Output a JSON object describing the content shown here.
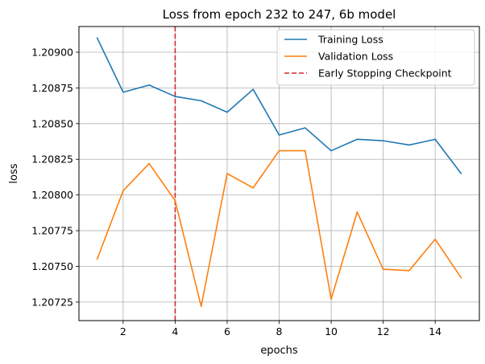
{
  "chart_data": {
    "type": "line",
    "title": "Loss from epoch 232 to 247, 6b model",
    "xlabel": "epochs",
    "ylabel": "loss",
    "xlim": [
      0.3,
      15.7
    ],
    "ylim": [
      1.20712,
      1.20918
    ],
    "xticks": [
      2,
      4,
      6,
      8,
      10,
      12,
      14
    ],
    "yticks": [
      1.20725,
      1.2075,
      1.20775,
      1.208,
      1.20825,
      1.2085,
      1.20875,
      1.209
    ],
    "ytick_labels": [
      "1.20725",
      "1.20750",
      "1.20775",
      "1.20800",
      "1.20825",
      "1.20850",
      "1.20875",
      "1.20900"
    ],
    "grid": true,
    "legend_position": "top-right",
    "series": [
      {
        "name": "Training Loss",
        "color": "#1f77b4",
        "x": [
          1,
          2,
          3,
          4,
          5,
          6,
          7,
          8,
          9,
          10,
          11,
          12,
          13,
          14,
          15
        ],
        "values": [
          1.2091,
          1.20872,
          1.20877,
          1.20869,
          1.20866,
          1.20858,
          1.20874,
          1.20842,
          1.20847,
          1.20831,
          1.20839,
          1.20838,
          1.20835,
          1.20839,
          1.20815
        ]
      },
      {
        "name": "Validation Loss",
        "color": "#ff7f0e",
        "x": [
          1,
          2,
          3,
          4,
          5,
          6,
          7,
          8,
          9,
          10,
          11,
          12,
          13,
          14,
          15
        ],
        "values": [
          1.20755,
          1.20803,
          1.20822,
          1.20796,
          1.20722,
          1.20815,
          1.20805,
          1.20831,
          1.20831,
          1.20727,
          1.20788,
          1.20748,
          1.20747,
          1.20769,
          1.20742
        ]
      }
    ],
    "vline": {
      "name": "Early Stopping Checkpoint",
      "x": 4,
      "color": "#d62728",
      "style": "dashed"
    }
  }
}
